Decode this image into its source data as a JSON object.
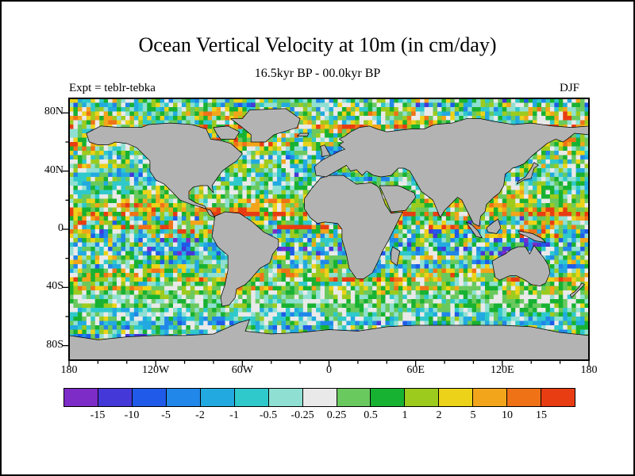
{
  "figure": {
    "title": "Ocean Vertical Velocity at 10m (in cm/day)",
    "subtitle": "16.5kyr BP - 00.0kyr BP",
    "experiment_label": "Expt = teblr-tebka",
    "season_label": "DJF"
  },
  "axes": {
    "y_tick_labels": [
      "80N",
      "40N",
      "0",
      "40S",
      "80S"
    ],
    "x_tick_labels": [
      "180",
      "120W",
      "60W",
      "0",
      "60E",
      "120E",
      "180"
    ]
  },
  "chart_data": {
    "type": "heatmap",
    "title": "Ocean Vertical Velocity at 10m (in cm/day)",
    "subtitle": "16.5kyr BP - 00.0kyr BP",
    "experiment": "teblr-tebka",
    "season": "DJF",
    "variable": "ocean vertical velocity",
    "depth": "10m",
    "units": "cm/day",
    "projection": "equirectangular world map with gray land mask",
    "x_axis": {
      "tick_labels": [
        "180",
        "120W",
        "60W",
        "0",
        "60E",
        "120E",
        "180"
      ],
      "range_deg": [
        -180,
        180
      ]
    },
    "y_axis": {
      "tick_labels": [
        "80N",
        "40N",
        "0",
        "40S",
        "80S"
      ],
      "range_deg": [
        -90,
        90
      ]
    },
    "colorbar": {
      "levels": [
        -15,
        -10,
        -5,
        -2,
        -1,
        -0.5,
        -0.25,
        0.25,
        0.5,
        1,
        2,
        5,
        10,
        15
      ],
      "level_labels": [
        "-15",
        "-10",
        "-5",
        "-2",
        "-1",
        "-0.5",
        "-0.25",
        "0.25",
        "0.5",
        "1",
        "2",
        "5",
        "10",
        "15"
      ],
      "colors": [
        "#7d2cc8",
        "#4538d8",
        "#1f5be8",
        "#2187e8",
        "#22aae0",
        "#2fc9cc",
        "#8fe0d2",
        "#e9e9e9",
        "#69c95e",
        "#18b232",
        "#9ccb1e",
        "#ecd319",
        "#f2a51b",
        "#ef7217",
        "#e83c12"
      ]
    },
    "land_color": "#b3b3b3"
  }
}
